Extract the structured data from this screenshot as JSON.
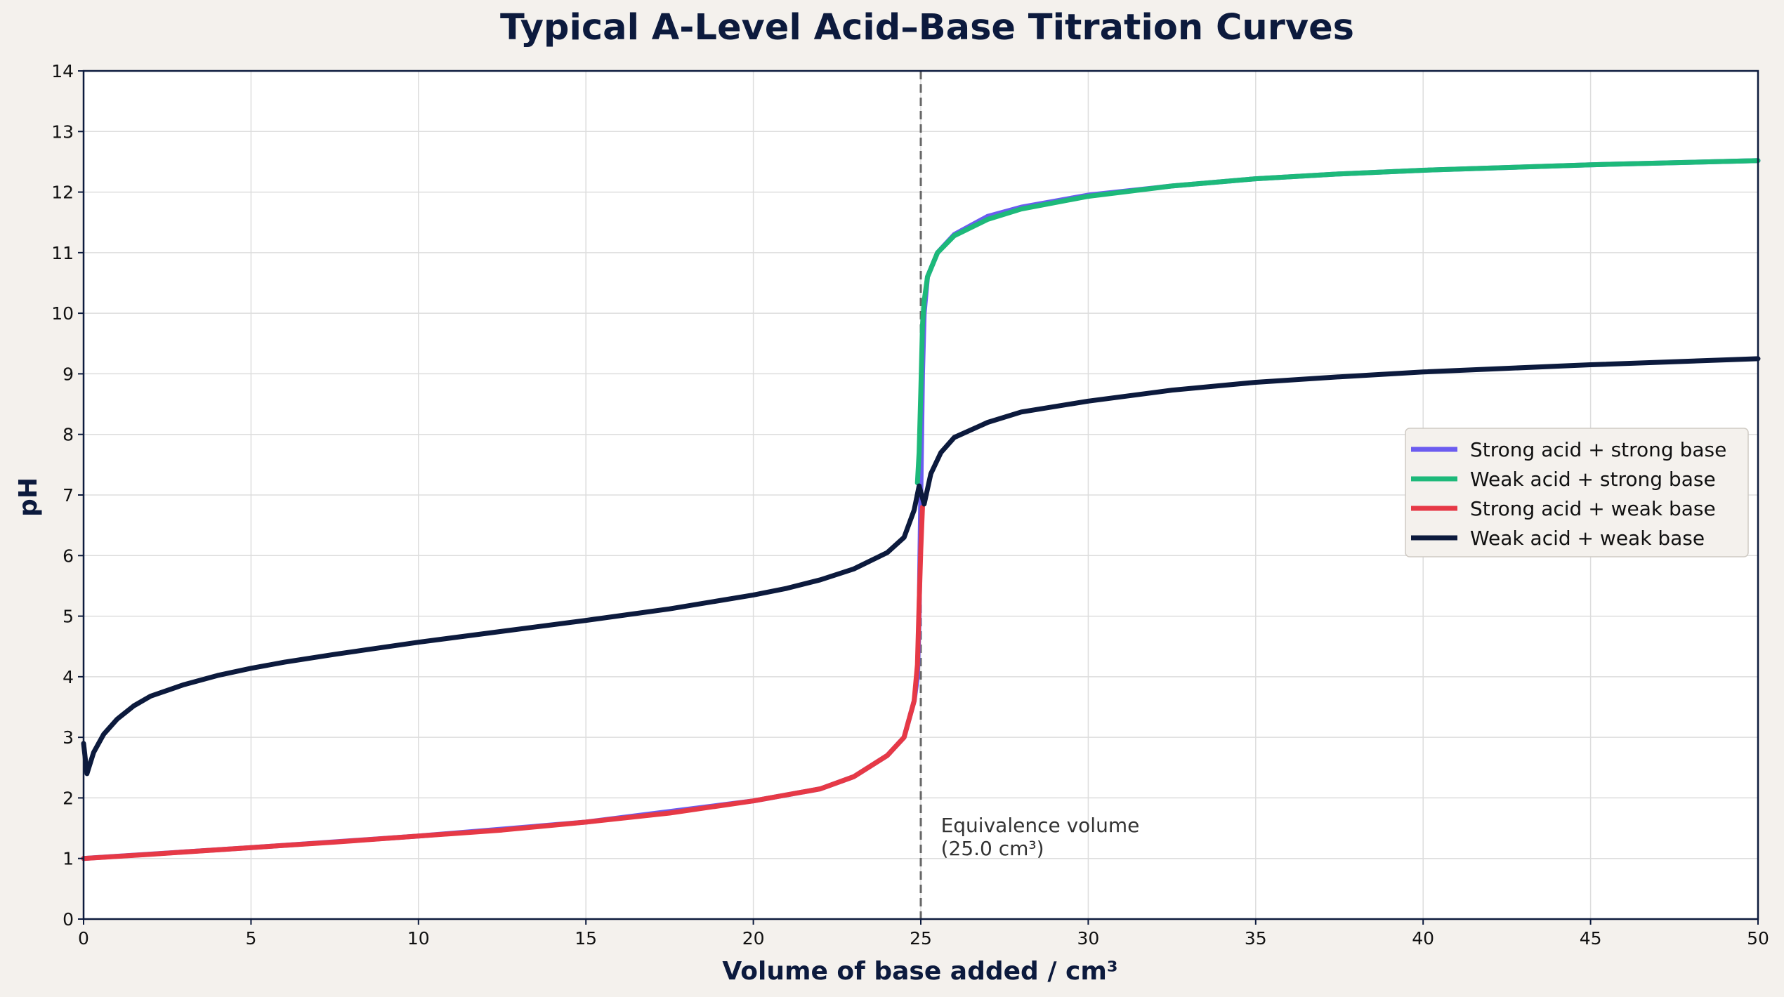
{
  "chart_data": {
    "type": "line",
    "title": "Typical A-Level Acid–Base Titration Curves",
    "xlabel": "Volume of base added / cm³",
    "ylabel": "pH",
    "xlim": [
      0,
      50
    ],
    "ylim": [
      0,
      14
    ],
    "xticks": [
      0,
      5,
      10,
      15,
      20,
      25,
      30,
      35,
      40,
      45,
      50
    ],
    "yticks": [
      0,
      1,
      2,
      3,
      4,
      5,
      6,
      7,
      8,
      9,
      10,
      11,
      12,
      13,
      14
    ],
    "grid": true,
    "legend_position": "center-right",
    "equivalence_line": {
      "x": 25,
      "style": "dashed",
      "color": "#666666"
    },
    "annotation": {
      "line1": "Equivalence volume",
      "line2": "(25.0 cm³)",
      "x": 25.6,
      "y": 1.15
    },
    "series": [
      {
        "name": "Strong acid + strong base",
        "color": "#6b5cf0",
        "points": [
          [
            0,
            1.0
          ],
          [
            5,
            1.18
          ],
          [
            10,
            1.37
          ],
          [
            15,
            1.6
          ],
          [
            20,
            1.95
          ],
          [
            22,
            2.15
          ],
          [
            23,
            2.35
          ],
          [
            24,
            2.7
          ],
          [
            24.5,
            3.0
          ],
          [
            24.8,
            3.6
          ],
          [
            24.9,
            4.0
          ],
          [
            24.95,
            5.0
          ],
          [
            25,
            7.0
          ],
          [
            25.05,
            9.0
          ],
          [
            25.1,
            10.0
          ],
          [
            25.2,
            10.6
          ],
          [
            25.5,
            11.0
          ],
          [
            26,
            11.3
          ],
          [
            27,
            11.6
          ],
          [
            28,
            11.75
          ],
          [
            30,
            11.95
          ],
          [
            32.5,
            12.1
          ],
          [
            35,
            12.22
          ],
          [
            37.5,
            12.3
          ],
          [
            40,
            12.36
          ],
          [
            45,
            12.45
          ],
          [
            50,
            12.52
          ]
        ]
      },
      {
        "name": "Weak acid + strong base",
        "color": "#1db97a",
        "points": [
          [
            24.9,
            7.2
          ],
          [
            24.95,
            7.7
          ],
          [
            25.0,
            8.7
          ],
          [
            25.05,
            9.8
          ],
          [
            25.1,
            10.2
          ],
          [
            25.2,
            10.6
          ],
          [
            25.5,
            11.0
          ],
          [
            26,
            11.28
          ],
          [
            27,
            11.55
          ],
          [
            28,
            11.72
          ],
          [
            30,
            11.93
          ],
          [
            32.5,
            12.1
          ],
          [
            35,
            12.22
          ],
          [
            37.5,
            12.3
          ],
          [
            40,
            12.36
          ],
          [
            45,
            12.45
          ],
          [
            50,
            12.52
          ]
        ]
      },
      {
        "name": "Strong acid + weak base",
        "color": "#e63946",
        "points": [
          [
            0,
            1.0
          ],
          [
            2,
            1.07
          ],
          [
            5,
            1.18
          ],
          [
            7.5,
            1.27
          ],
          [
            10,
            1.37
          ],
          [
            12.5,
            1.47
          ],
          [
            15,
            1.6
          ],
          [
            17.5,
            1.75
          ],
          [
            20,
            1.95
          ],
          [
            21,
            2.05
          ],
          [
            22,
            2.15
          ],
          [
            23,
            2.35
          ],
          [
            24,
            2.7
          ],
          [
            24.5,
            3.0
          ],
          [
            24.8,
            3.6
          ],
          [
            24.9,
            4.2
          ],
          [
            24.95,
            5.2
          ],
          [
            25.0,
            6.1
          ],
          [
            25.05,
            6.8
          ]
        ]
      },
      {
        "name": "Weak acid + weak base",
        "color": "#0c1a3d",
        "points": [
          [
            0,
            2.9
          ],
          [
            0.1,
            2.4
          ],
          [
            0.3,
            2.75
          ],
          [
            0.6,
            3.05
          ],
          [
            1,
            3.3
          ],
          [
            1.5,
            3.52
          ],
          [
            2,
            3.68
          ],
          [
            3,
            3.87
          ],
          [
            4,
            4.02
          ],
          [
            5,
            4.14
          ],
          [
            6,
            4.24
          ],
          [
            7.5,
            4.37
          ],
          [
            10,
            4.57
          ],
          [
            12.5,
            4.75
          ],
          [
            15,
            4.93
          ],
          [
            17.5,
            5.12
          ],
          [
            20,
            5.35
          ],
          [
            21,
            5.46
          ],
          [
            22,
            5.6
          ],
          [
            23,
            5.78
          ],
          [
            24,
            6.05
          ],
          [
            24.5,
            6.3
          ],
          [
            24.8,
            6.75
          ],
          [
            24.95,
            7.15
          ],
          [
            25.05,
            6.95
          ],
          [
            25.1,
            6.85
          ],
          [
            25.3,
            7.35
          ],
          [
            25.6,
            7.7
          ],
          [
            26,
            7.95
          ],
          [
            27,
            8.2
          ],
          [
            28,
            8.37
          ],
          [
            30,
            8.55
          ],
          [
            32.5,
            8.73
          ],
          [
            35,
            8.86
          ],
          [
            37.5,
            8.95
          ],
          [
            40,
            9.03
          ],
          [
            45,
            9.15
          ],
          [
            50,
            9.25
          ]
        ]
      }
    ]
  }
}
